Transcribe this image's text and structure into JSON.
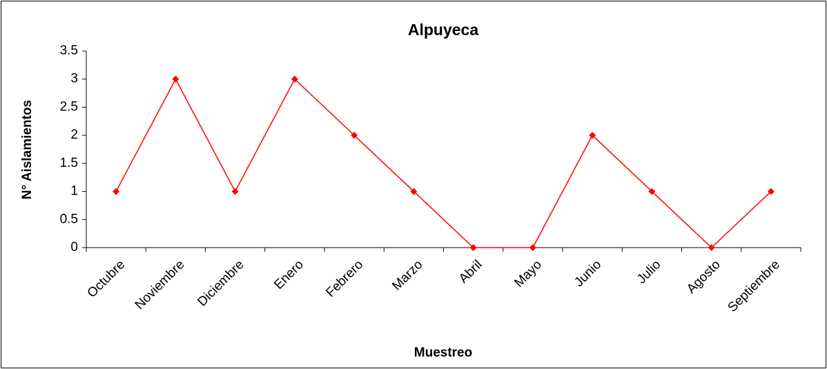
{
  "chart_data": {
    "type": "line",
    "title": "Alpuyeca",
    "x_label": "Muestreo",
    "y_label": "N° Aislamientos",
    "categories": [
      "Octubre",
      "Noviembre",
      "Diciembre",
      "Enero",
      "Febrero",
      "Marzo",
      "Abril",
      "Mayo",
      "Junio",
      "Julio",
      "Agosto",
      "Septiembre"
    ],
    "values": [
      1,
      3,
      1,
      3,
      2,
      1,
      0,
      0,
      2,
      1,
      0,
      1
    ],
    "color": "#ff0000",
    "ylim": [
      0,
      3.5
    ],
    "yticks": [
      0,
      0.5,
      1,
      1.5,
      2,
      2.5,
      3,
      3.5
    ],
    "grid": false
  }
}
